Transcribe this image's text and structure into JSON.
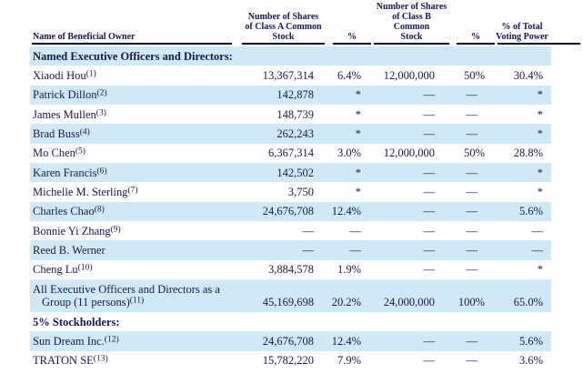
{
  "colors": {
    "row_band": "#cfe9f7",
    "text": "#181848",
    "rule": "#0b0b33",
    "background": "#ffffff"
  },
  "table": {
    "header": {
      "name": "Name of Beneficial Owner",
      "class_a": [
        "Number of Shares",
        "of Class A Common",
        "Stock"
      ],
      "pct_a": "%",
      "class_b": [
        "Number of Shares",
        "of Class B Common",
        "Stock"
      ],
      "pct_b": "%",
      "voting": [
        "% of Total",
        "Voting Power"
      ]
    },
    "dash": "—",
    "rows": [
      {
        "type": "section",
        "label": "Named Executive Officers and Directors:"
      },
      {
        "type": "data",
        "name": "Xiaodi Hou",
        "footnote": "(1)",
        "a": "13,367,314",
        "ap": "6.4%",
        "b": "12,000,000",
        "bp": "50%",
        "v": "30.4%"
      },
      {
        "type": "data",
        "name": "Patrick Dillon",
        "footnote": "(2)",
        "a": "142,878",
        "ap": "*",
        "b": "—",
        "bp": "—",
        "v": "*"
      },
      {
        "type": "data",
        "name": "James Mullen",
        "footnote": "(3)",
        "a": "148,739",
        "ap": "*",
        "b": "—",
        "bp": "—",
        "v": "*"
      },
      {
        "type": "data",
        "name": "Brad Buss",
        "footnote": "(4)",
        "a": "262,243",
        "ap": "*",
        "b": "—",
        "bp": "—",
        "v": "*"
      },
      {
        "type": "data",
        "name": "Mo Chen",
        "footnote": "(5)",
        "a": "6,367,314",
        "ap": "3.0%",
        "b": "12,000,000",
        "bp": "50%",
        "v": "28.8%"
      },
      {
        "type": "data",
        "name": "Karen Francis",
        "footnote": "(6)",
        "a": "142,502",
        "ap": "*",
        "b": "—",
        "bp": "—",
        "v": "*"
      },
      {
        "type": "data",
        "name": "Michelle M. Sterling",
        "footnote": "(7)",
        "a": "3,750",
        "ap": "*",
        "b": "—",
        "bp": "—",
        "v": "*"
      },
      {
        "type": "data",
        "name": "Charles Chao",
        "footnote": "(8)",
        "a": "24,676,708",
        "ap": "12.4%",
        "b": "—",
        "bp": "—",
        "v": "5.6%"
      },
      {
        "type": "data",
        "name": "Bonnie Yi Zhang",
        "footnote": "(9)",
        "a": "—",
        "ap": "—",
        "b": "—",
        "bp": "—",
        "v": "—"
      },
      {
        "type": "data",
        "name": "Reed B. Werner",
        "footnote": "",
        "a": "—",
        "ap": "—",
        "b": "—",
        "bp": "—",
        "v": "—"
      },
      {
        "type": "data",
        "name": "Cheng Lu",
        "footnote": "(10)",
        "a": "3,884,578",
        "ap": "1.9%",
        "b": "—",
        "bp": "—",
        "v": "*"
      },
      {
        "type": "group",
        "name_lines": [
          "All Executive Officers and Directors as a",
          "Group (11 persons)"
        ],
        "footnote": "(11)",
        "a": "45,169,698",
        "ap": "20.2%",
        "b": "24,000,000",
        "bp": "100%",
        "v": "65.0%"
      },
      {
        "type": "section",
        "label": "5% Stockholders:"
      },
      {
        "type": "data",
        "name": "Sun Dream Inc.",
        "footnote": "(12)",
        "a": "24,676,708",
        "ap": "12.4%",
        "b": "—",
        "bp": "—",
        "v": "5.6%"
      },
      {
        "type": "data",
        "name": "TRATON SE",
        "footnote": "(13)",
        "a": "15,782,220",
        "ap": "7.9%",
        "b": "—",
        "bp": "—",
        "v": "3.6%"
      }
    ]
  }
}
